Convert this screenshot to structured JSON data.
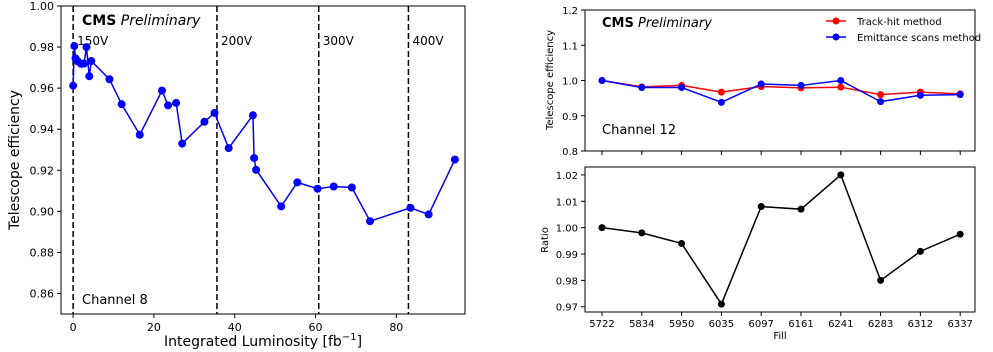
{
  "chart_data": [
    {
      "type": "line",
      "title": "",
      "banner_bold": "CMS",
      "banner_italic": "Preliminary",
      "xlabel": "Integrated Luminosity [fb$^{-1}$]",
      "xlabel_base": "Integrated Luminosity [fb",
      "xlabel_sup": "−1",
      "xlabel_close": "]",
      "ylabel": "Telescope efficiency",
      "channel_label": "Channel 8",
      "xlim": [
        -3,
        97
      ],
      "ylim": [
        0.85,
        1.0
      ],
      "xticks": [
        0,
        20,
        40,
        60,
        80
      ],
      "yticks": [
        0.86,
        0.88,
        0.9,
        0.92,
        0.94,
        0.96,
        0.98,
        1.0
      ],
      "ytick_labels": [
        "0.86",
        "0.88",
        "0.90",
        "0.92",
        "0.94",
        "0.96",
        "0.98",
        "1.00"
      ],
      "series": [
        {
          "color": "#0000ff",
          "x": [
            0.0,
            0.3,
            0.6,
            1.2,
            2.0,
            2.7,
            3.3,
            4.0,
            4.5,
            9.0,
            12.0,
            16.5,
            22.0,
            23.5,
            25.5,
            27.0,
            32.5,
            35.0,
            38.5,
            44.5,
            44.8,
            45.3,
            51.5,
            55.5,
            60.5,
            64.5,
            69.0,
            73.5,
            83.5,
            88.0,
            94.5
          ],
          "y": [
            0.9612,
            0.9805,
            0.9745,
            0.973,
            0.9718,
            0.972,
            0.98,
            0.9658,
            0.9732,
            0.9643,
            0.9522,
            0.9373,
            0.9588,
            0.9516,
            0.9528,
            0.933,
            0.9436,
            0.9479,
            0.9308,
            0.9468,
            0.926,
            0.9202,
            0.9024,
            0.9141,
            0.911,
            0.9121,
            0.9116,
            0.8952,
            0.9017,
            0.8985,
            0.9252
          ]
        }
      ],
      "vlines": [
        {
          "x": 0,
          "label": "150V"
        },
        {
          "x": 35.6,
          "label": "200V"
        },
        {
          "x": 60.8,
          "label": "300V"
        },
        {
          "x": 83.0,
          "label": "400V"
        }
      ]
    },
    {
      "type": "line",
      "title": "",
      "banner_bold": "CMS",
      "banner_italic": "Preliminary",
      "ylabel": "Telescope efficiency",
      "channel_label": "Channel 12",
      "categories": [
        "5722",
        "5834",
        "5950",
        "6035",
        "6097",
        "6161",
        "6241",
        "6283",
        "6312",
        "6337"
      ],
      "ylim": [
        0.8,
        1.2
      ],
      "yticks": [
        0.8,
        0.9,
        1.0,
        1.1,
        1.2
      ],
      "ytick_labels": [
        "0.8",
        "0.9",
        "1.0",
        "1.1",
        "1.2"
      ],
      "legend_position": "top-right",
      "series": [
        {
          "name": "Track-hit method",
          "color": "#ff0000",
          "values": [
            1.0,
            0.982,
            0.986,
            0.967,
            0.983,
            0.979,
            0.981,
            0.96,
            0.967,
            0.962
          ]
        },
        {
          "name": "Emittance scans method",
          "color": "#0000ff",
          "values": [
            1.0,
            0.98,
            0.98,
            0.938,
            0.99,
            0.986,
            1.0,
            0.94,
            0.958,
            0.96
          ]
        }
      ]
    },
    {
      "type": "line",
      "title": "",
      "xlabel": "Fill",
      "ylabel": "Ratio",
      "categories": [
        "5722",
        "5834",
        "5950",
        "6035",
        "6097",
        "6161",
        "6241",
        "6283",
        "6312",
        "6337"
      ],
      "ylim": [
        0.968,
        1.023
      ],
      "yticks": [
        0.97,
        0.98,
        0.99,
        1.0,
        1.01,
        1.02
      ],
      "ytick_labels": [
        "0.97",
        "0.98",
        "0.99",
        "1.00",
        "1.01",
        "1.02"
      ],
      "series": [
        {
          "color": "#000000",
          "values": [
            1.0,
            0.998,
            0.994,
            0.971,
            1.008,
            1.007,
            1.02,
            0.98,
            0.991,
            0.9975
          ]
        }
      ]
    }
  ]
}
